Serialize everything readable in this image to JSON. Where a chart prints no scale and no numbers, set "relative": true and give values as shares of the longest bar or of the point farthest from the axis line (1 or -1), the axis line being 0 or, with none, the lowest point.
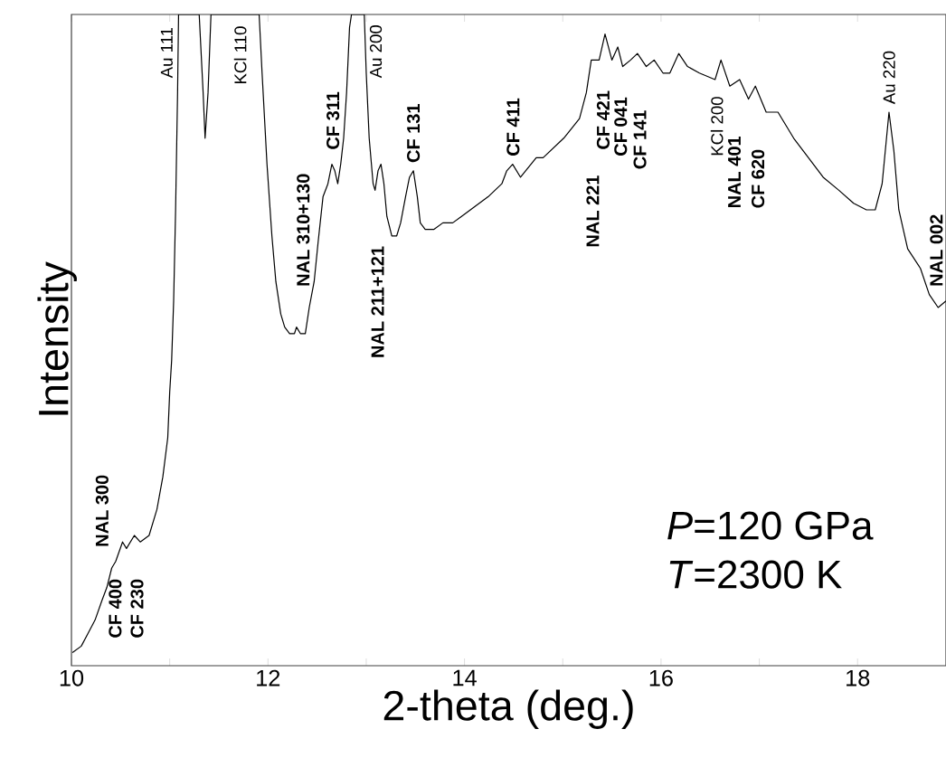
{
  "chart_data": {
    "type": "line",
    "relative": true,
    "xlabel": "2-theta (deg.)",
    "ylabel": "Intensity",
    "xlim": [
      10,
      18.9
    ],
    "xticks": [
      10,
      {
        "value": 11,
        "label": null
      },
      12,
      {
        "value": 13,
        "label": null
      },
      14,
      {
        "value": 15,
        "label": null
      },
      16,
      {
        "value": 17,
        "label": null
      },
      18
    ],
    "color": "#000000",
    "x": [
      10.01,
      10.1,
      10.17,
      10.24,
      10.31,
      10.36,
      10.41,
      10.45,
      10.52,
      10.56,
      10.64,
      10.7,
      10.79,
      10.87,
      10.93,
      10.98,
      11.0,
      11.02,
      11.04,
      11.06,
      11.08,
      11.09,
      11.3,
      11.34,
      11.36,
      11.39,
      11.42,
      11.91,
      11.94,
      11.99,
      12.04,
      12.08,
      12.13,
      12.17,
      12.22,
      12.27,
      12.29,
      12.33,
      12.38,
      12.42,
      12.47,
      12.51,
      12.56,
      12.61,
      12.65,
      12.68,
      12.71,
      12.74,
      12.77,
      12.8,
      12.83,
      12.85,
      12.98,
      13.0,
      13.03,
      13.07,
      13.09,
      13.12,
      13.15,
      13.18,
      13.21,
      13.26,
      13.31,
      13.35,
      13.4,
      13.44,
      13.48,
      13.52,
      13.55,
      13.6,
      13.69,
      13.78,
      13.83,
      13.88,
      14.06,
      14.24,
      14.38,
      14.43,
      14.49,
      14.57,
      14.73,
      14.8,
      15.01,
      15.17,
      15.24,
      15.29,
      15.33,
      15.37,
      15.43,
      15.5,
      15.56,
      15.61,
      15.69,
      15.76,
      15.85,
      15.93,
      16.02,
      16.09,
      16.18,
      16.27,
      16.39,
      16.55,
      16.61,
      16.7,
      16.8,
      16.89,
      16.96,
      17.07,
      17.19,
      17.35,
      17.5,
      17.65,
      17.81,
      17.96,
      18.09,
      18.18,
      18.25,
      18.32,
      18.37,
      18.42,
      18.51,
      18.64,
      18.73,
      18.82,
      18.9
    ],
    "values": [
      0.02,
      0.03,
      0.05,
      0.07,
      0.1,
      0.12,
      0.15,
      0.16,
      0.19,
      0.18,
      0.2,
      0.19,
      0.2,
      0.24,
      0.29,
      0.35,
      0.42,
      0.47,
      0.56,
      0.7,
      0.88,
      1,
      1,
      0.88,
      0.81,
      0.88,
      1,
      1,
      0.91,
      0.77,
      0.66,
      0.59,
      0.54,
      0.52,
      0.51,
      0.51,
      0.52,
      0.51,
      0.51,
      0.55,
      0.59,
      0.65,
      0.72,
      0.74,
      0.77,
      0.76,
      0.74,
      0.77,
      0.81,
      0.88,
      0.98,
      1,
      1,
      0.91,
      0.81,
      0.74,
      0.73,
      0.76,
      0.77,
      0.74,
      0.69,
      0.66,
      0.66,
      0.68,
      0.72,
      0.75,
      0.76,
      0.72,
      0.68,
      0.67,
      0.67,
      0.68,
      0.68,
      0.68,
      0.7,
      0.72,
      0.74,
      0.76,
      0.77,
      0.75,
      0.78,
      0.78,
      0.81,
      0.84,
      0.88,
      0.93,
      0.93,
      0.93,
      0.97,
      0.93,
      0.95,
      0.92,
      0.93,
      0.94,
      0.92,
      0.93,
      0.91,
      0.91,
      0.94,
      0.92,
      0.91,
      0.9,
      0.93,
      0.89,
      0.9,
      0.87,
      0.89,
      0.85,
      0.85,
      0.81,
      0.78,
      0.75,
      0.73,
      0.71,
      0.7,
      0.7,
      0.74,
      0.85,
      0.79,
      0.7,
      0.64,
      0.61,
      0.57,
      0.55,
      0.56
    ],
    "annotations": [
      "Au 111",
      "KCl 110",
      "Au 200",
      "NAL 310+130",
      "CF 311",
      "NAL 211+121",
      "CF 131",
      "CF 411",
      "NAL 221",
      "CF 421",
      "CF 041",
      "CF 141",
      "KCl 200",
      "NAL 401",
      "CF 620",
      "Au 220",
      "NAL 002",
      "NAL 300",
      "CF 400",
      "CF 230",
      "*P*=120 GPa",
      "*T*=2300 K"
    ]
  }
}
